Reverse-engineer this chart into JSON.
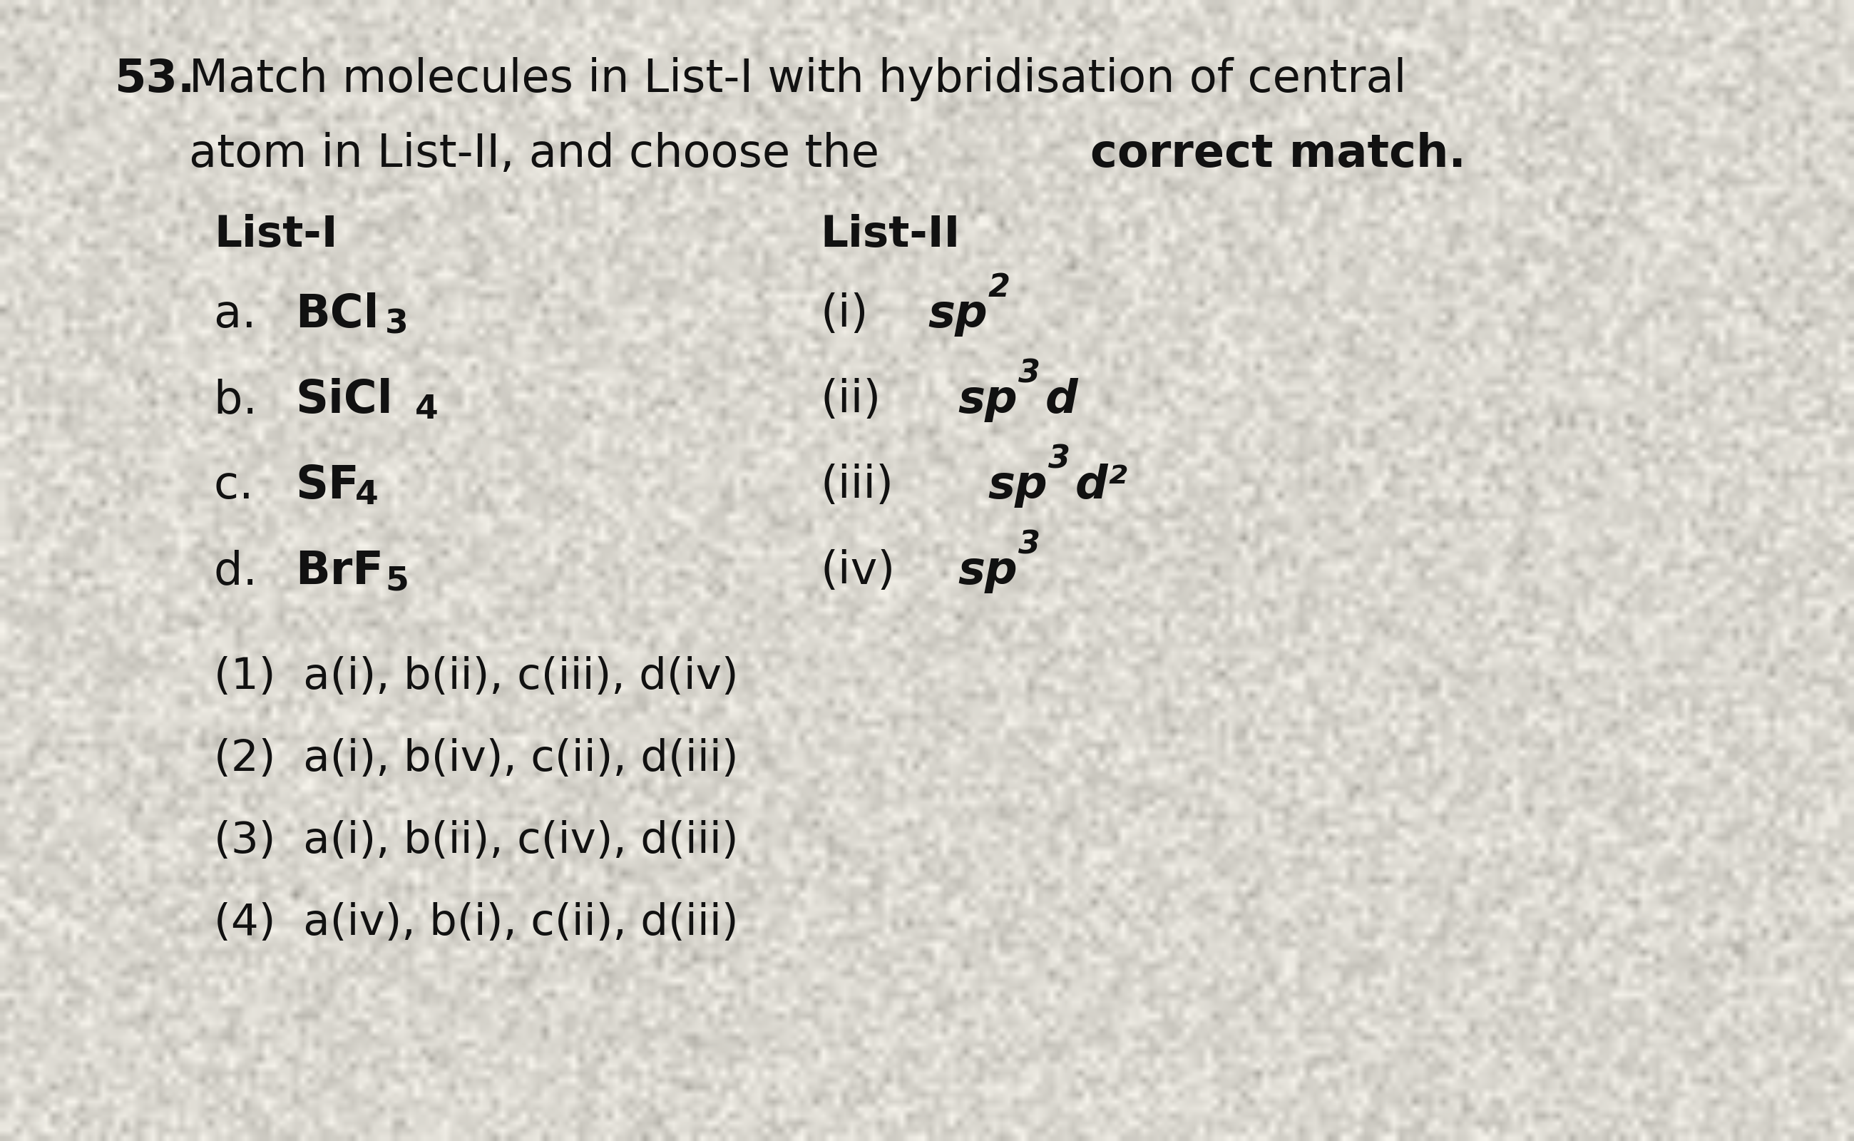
{
  "bg_color": "#f0ece0",
  "text_color": "#111111",
  "question_number": "53.",
  "line1": "Match molecules in List-I with hybridisation of central",
  "line2_normal": "atom in List-II, and choose the ",
  "line2_bold": "correct match.",
  "list1_header": "List-I",
  "list2_header": "List-II",
  "list1_items": [
    {
      "label": "a. ",
      "molecule": "BCl",
      "sub": "3"
    },
    {
      "label": "b. ",
      "molecule": "SiCl",
      "sub": "4"
    },
    {
      "label": "c. ",
      "molecule": "SF",
      "sub": "4"
    },
    {
      "label": "d. ",
      "molecule": "BrF",
      "sub": "5"
    }
  ],
  "list2_items": [
    {
      "num": "(i)",
      "sp": "sp",
      "sup": "2",
      "extra": ""
    },
    {
      "num": "(ii)",
      "sp": "sp",
      "sup": "3",
      "extra": "d"
    },
    {
      "num": "(iii)",
      "sp": "sp",
      "sup": "3",
      "extra": "d²"
    },
    {
      "num": "(iv)",
      "sp": "sp",
      "sup": "3",
      "extra": ""
    }
  ],
  "options": [
    "(1)  a(i), b(ii), c(iii), d(iv)",
    "(2)  a(i), b(iv), c(ii), d(iii)",
    "(3)  a(i), b(ii), c(iv), d(iii)",
    "(4)  a(iv), b(i), c(ii), d(iii)"
  ],
  "fs_title": 46,
  "fs_list_header": 44,
  "fs_list": 46,
  "fs_sub": 34,
  "fs_sup": 32,
  "fs_options": 44
}
